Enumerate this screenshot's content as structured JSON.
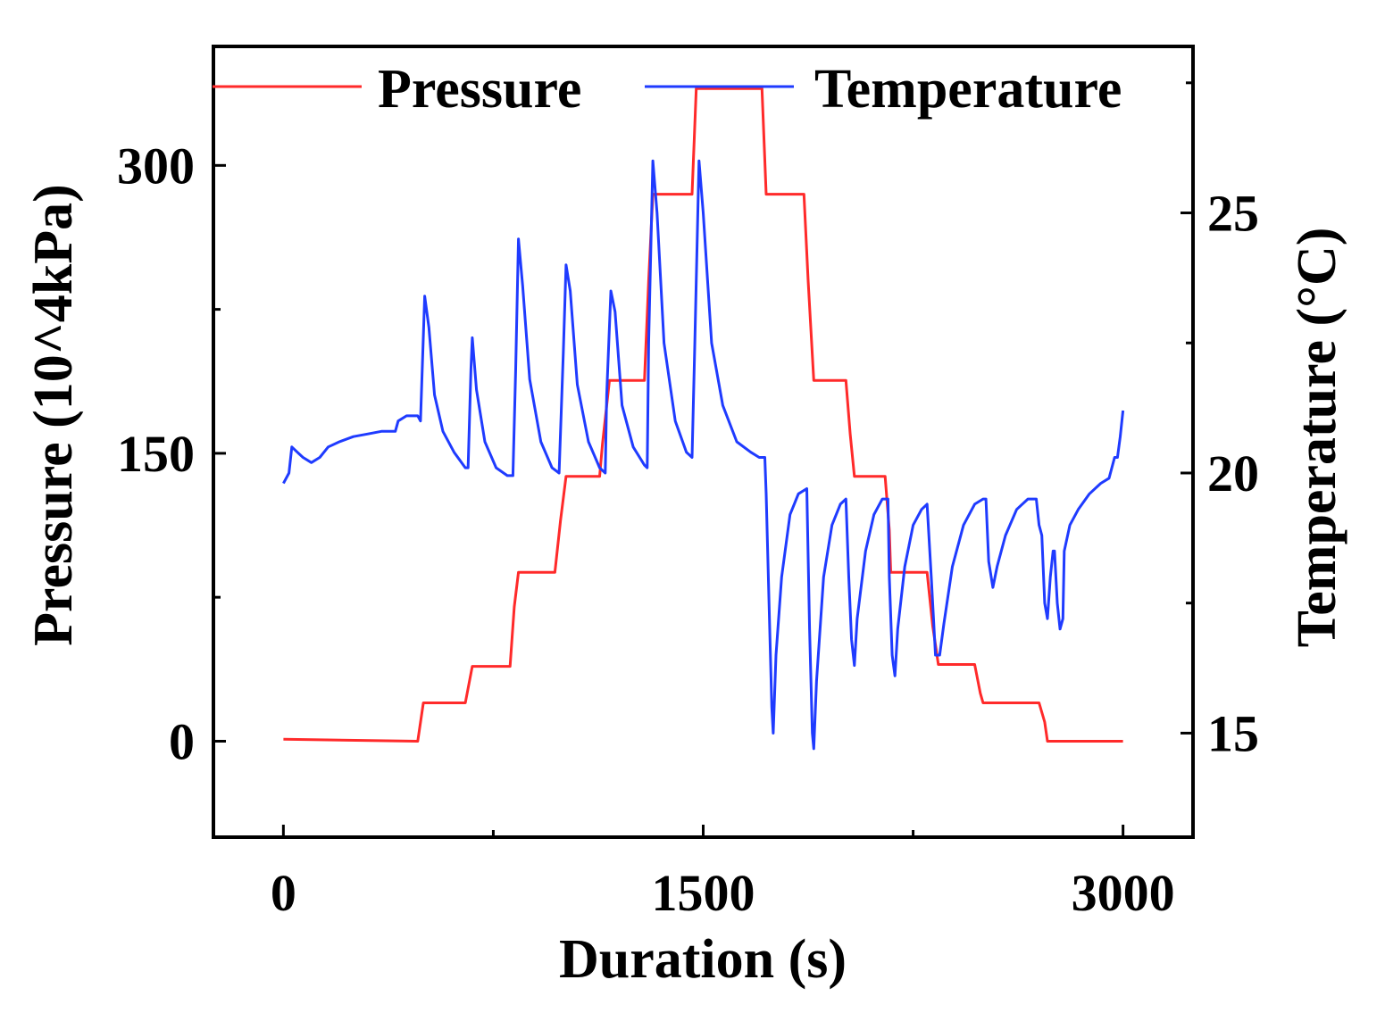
{
  "chart_data": {
    "type": "line",
    "title": "",
    "xlabel": "Duration (s)",
    "ylabel_left": "Pressure (10^4kPa)",
    "ylabel_right": "Temperature (°C)",
    "xlim": [
      -250,
      3250
    ],
    "ylim_left": [
      -50,
      362
    ],
    "ylim_right": [
      13,
      28.2
    ],
    "x_ticks": [
      0,
      1500,
      3000
    ],
    "y_left_ticks": [
      0,
      150,
      300
    ],
    "y_right_ticks": [
      15,
      20,
      25
    ],
    "legend_position": "top",
    "colors": {
      "pressure": "#ff2a2a",
      "temperature": "#1f3bff",
      "axis": "#000000"
    },
    "series": [
      {
        "name": "Pressure",
        "axis": "left",
        "points": [
          [
            0,
            1
          ],
          [
            480,
            0
          ],
          [
            500,
            20
          ],
          [
            650,
            20
          ],
          [
            675,
            39
          ],
          [
            810,
            39
          ],
          [
            825,
            70
          ],
          [
            840,
            88
          ],
          [
            970,
            88
          ],
          [
            990,
            115
          ],
          [
            1010,
            138
          ],
          [
            1130,
            138
          ],
          [
            1140,
            155
          ],
          [
            1165,
            188
          ],
          [
            1290,
            188
          ],
          [
            1305,
            240
          ],
          [
            1320,
            285
          ],
          [
            1460,
            285
          ],
          [
            1475,
            340
          ],
          [
            1710,
            340
          ],
          [
            1725,
            285
          ],
          [
            1860,
            285
          ],
          [
            1875,
            240
          ],
          [
            1895,
            188
          ],
          [
            2010,
            188
          ],
          [
            2025,
            160
          ],
          [
            2040,
            138
          ],
          [
            2150,
            138
          ],
          [
            2165,
            110
          ],
          [
            2170,
            88
          ],
          [
            2300,
            88
          ],
          [
            2320,
            60
          ],
          [
            2340,
            40
          ],
          [
            2470,
            40
          ],
          [
            2490,
            25
          ],
          [
            2500,
            20
          ],
          [
            2700,
            20
          ],
          [
            2720,
            10
          ],
          [
            2730,
            0
          ],
          [
            3000,
            0
          ]
        ]
      },
      {
        "name": "Temperature",
        "axis": "right",
        "points": [
          [
            0,
            19.8
          ],
          [
            20,
            20.0
          ],
          [
            30,
            20.5
          ],
          [
            50,
            20.4
          ],
          [
            70,
            20.3
          ],
          [
            100,
            20.2
          ],
          [
            130,
            20.3
          ],
          [
            160,
            20.5
          ],
          [
            200,
            20.6
          ],
          [
            250,
            20.7
          ],
          [
            300,
            20.75
          ],
          [
            350,
            20.8
          ],
          [
            380,
            20.8
          ],
          [
            400,
            20.8
          ],
          [
            410,
            21.0
          ],
          [
            440,
            21.1
          ],
          [
            480,
            21.1
          ],
          [
            490,
            21.0
          ],
          [
            505,
            23.4
          ],
          [
            520,
            22.8
          ],
          [
            540,
            21.5
          ],
          [
            570,
            20.8
          ],
          [
            610,
            20.4
          ],
          [
            650,
            20.1
          ],
          [
            660,
            20.1
          ],
          [
            670,
            22.0
          ],
          [
            675,
            22.6
          ],
          [
            690,
            21.6
          ],
          [
            720,
            20.6
          ],
          [
            760,
            20.1
          ],
          [
            800,
            19.95
          ],
          [
            820,
            19.95
          ],
          [
            830,
            22.0
          ],
          [
            840,
            24.5
          ],
          [
            855,
            23.6
          ],
          [
            880,
            21.8
          ],
          [
            920,
            20.6
          ],
          [
            960,
            20.1
          ],
          [
            985,
            20.0
          ],
          [
            1000,
            22.3
          ],
          [
            1010,
            24.0
          ],
          [
            1025,
            23.5
          ],
          [
            1050,
            21.7
          ],
          [
            1090,
            20.6
          ],
          [
            1130,
            20.1
          ],
          [
            1150,
            20.0
          ],
          [
            1155,
            21.5
          ],
          [
            1170,
            23.5
          ],
          [
            1185,
            23.1
          ],
          [
            1210,
            21.3
          ],
          [
            1250,
            20.5
          ],
          [
            1290,
            20.15
          ],
          [
            1300,
            20.1
          ],
          [
            1305,
            22.5
          ],
          [
            1320,
            26.0
          ],
          [
            1335,
            25.0
          ],
          [
            1360,
            22.5
          ],
          [
            1400,
            21.0
          ],
          [
            1440,
            20.4
          ],
          [
            1460,
            20.3
          ],
          [
            1470,
            22.5
          ],
          [
            1485,
            26.0
          ],
          [
            1500,
            25.0
          ],
          [
            1530,
            22.5
          ],
          [
            1570,
            21.3
          ],
          [
            1620,
            20.6
          ],
          [
            1670,
            20.4
          ],
          [
            1700,
            20.3
          ],
          [
            1720,
            20.3
          ],
          [
            1725,
            19.6
          ],
          [
            1735,
            17.5
          ],
          [
            1745,
            15.5
          ],
          [
            1750,
            15.0
          ],
          [
            1760,
            16.5
          ],
          [
            1780,
            18.0
          ],
          [
            1810,
            19.2
          ],
          [
            1840,
            19.6
          ],
          [
            1870,
            19.7
          ],
          [
            1880,
            17.0
          ],
          [
            1890,
            15.0
          ],
          [
            1895,
            14.7
          ],
          [
            1905,
            16.0
          ],
          [
            1930,
            18.0
          ],
          [
            1960,
            19.0
          ],
          [
            1990,
            19.4
          ],
          [
            2010,
            19.5
          ],
          [
            2020,
            18.0
          ],
          [
            2030,
            16.8
          ],
          [
            2040,
            16.3
          ],
          [
            2050,
            17.2
          ],
          [
            2080,
            18.5
          ],
          [
            2110,
            19.2
          ],
          [
            2140,
            19.5
          ],
          [
            2160,
            19.5
          ],
          [
            2165,
            18.0
          ],
          [
            2175,
            16.5
          ],
          [
            2185,
            16.1
          ],
          [
            2195,
            17.0
          ],
          [
            2220,
            18.2
          ],
          [
            2250,
            19.0
          ],
          [
            2280,
            19.3
          ],
          [
            2300,
            19.4
          ],
          [
            2315,
            18.0
          ],
          [
            2330,
            16.5
          ],
          [
            2345,
            16.5
          ],
          [
            2360,
            17.1
          ],
          [
            2390,
            18.2
          ],
          [
            2430,
            19.0
          ],
          [
            2470,
            19.4
          ],
          [
            2500,
            19.5
          ],
          [
            2510,
            19.5
          ],
          [
            2520,
            18.3
          ],
          [
            2535,
            17.8
          ],
          [
            2550,
            18.2
          ],
          [
            2580,
            18.8
          ],
          [
            2620,
            19.3
          ],
          [
            2660,
            19.5
          ],
          [
            2690,
            19.5
          ],
          [
            2700,
            19.0
          ],
          [
            2710,
            18.8
          ],
          [
            2720,
            17.5
          ],
          [
            2730,
            17.2
          ],
          [
            2740,
            18.0
          ],
          [
            2750,
            18.5
          ],
          [
            2755,
            18.5
          ],
          [
            2765,
            17.5
          ],
          [
            2775,
            17.0
          ],
          [
            2785,
            17.2
          ],
          [
            2790,
            18.5
          ],
          [
            2810,
            19.0
          ],
          [
            2840,
            19.3
          ],
          [
            2880,
            19.6
          ],
          [
            2920,
            19.8
          ],
          [
            2950,
            19.9
          ],
          [
            2960,
            20.1
          ],
          [
            2970,
            20.3
          ],
          [
            2980,
            20.3
          ],
          [
            2990,
            20.7
          ],
          [
            3000,
            21.2
          ]
        ]
      }
    ]
  }
}
